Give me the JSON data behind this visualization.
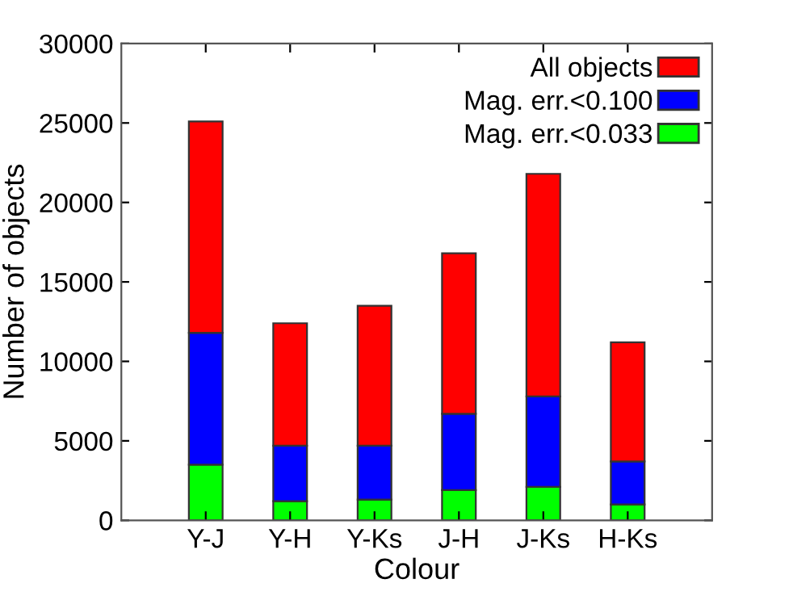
{
  "chart_data": {
    "type": "bar",
    "stacked": true,
    "xlabel": "Colour",
    "ylabel": "Number of objects",
    "categories": [
      "Y-J",
      "Y-H",
      "Y-Ks",
      "J-H",
      "J-Ks",
      "H-Ks"
    ],
    "series": [
      {
        "name": "Mag. err.<0.033",
        "color": "#00ff00",
        "values": [
          3500,
          1200,
          1300,
          1900,
          2100,
          1000
        ]
      },
      {
        "name": "Mag. err.<0.100",
        "color": "#0000ff",
        "values": [
          8300,
          3500,
          3400,
          4800,
          5700,
          2700
        ]
      },
      {
        "name": "All objects",
        "color": "#ff0000",
        "values": [
          13300,
          7700,
          8800,
          10100,
          14000,
          7500
        ]
      }
    ],
    "ylim": [
      0,
      30000
    ],
    "yticks": [
      0,
      5000,
      10000,
      15000,
      20000,
      25000,
      30000
    ],
    "grid": false,
    "legend": "top right"
  }
}
